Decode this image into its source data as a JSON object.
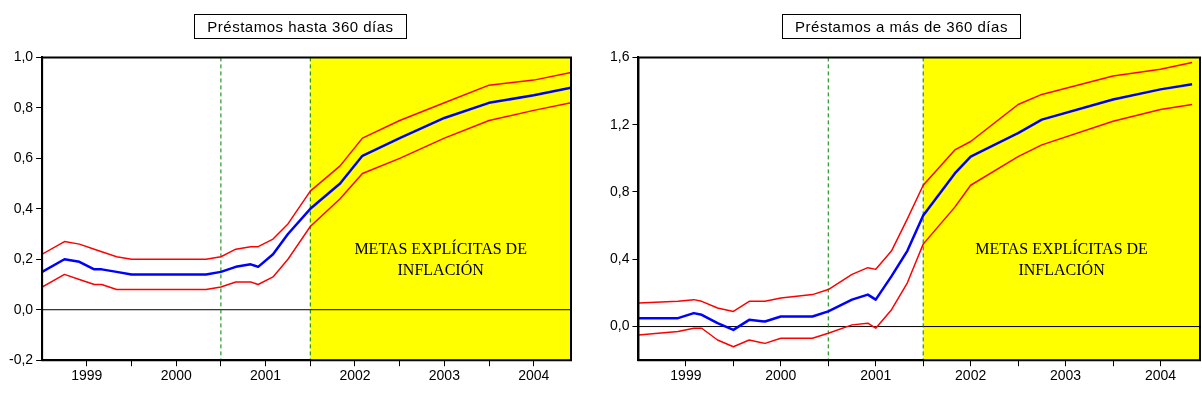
{
  "chart_data": [
    {
      "type": "line",
      "title": "Préstamos hasta 360 días",
      "line_style": "solid",
      "marker": "none",
      "grid": false,
      "legend": false,
      "x": [
        "1999-01",
        "1999-04",
        "1999-06",
        "1999-08",
        "1999-09",
        "1999-11",
        "2000-01",
        "2000-07",
        "2000-11",
        "2001-01",
        "2001-03",
        "2001-05",
        "2001-06",
        "2001-08",
        "2001-10",
        "2002-01",
        "2002-05",
        "2002-08",
        "2003-01",
        "2003-07",
        "2004-01",
        "2004-07",
        "2004-12"
      ],
      "series": [
        {
          "color": "#ff0000",
          "values": [
            0.22,
            0.27,
            0.26,
            0.24,
            0.23,
            0.21,
            0.2,
            0.2,
            0.2,
            0.21,
            0.24,
            0.25,
            0.25,
            0.28,
            0.34,
            0.47,
            0.57,
            0.68,
            0.75,
            0.82,
            0.89,
            0.91,
            0.94
          ]
        },
        {
          "color": "#ff0000",
          "values": [
            0.09,
            0.14,
            0.12,
            0.1,
            0.1,
            0.08,
            0.08,
            0.08,
            0.08,
            0.09,
            0.11,
            0.11,
            0.1,
            0.13,
            0.2,
            0.33,
            0.44,
            0.54,
            0.6,
            0.68,
            0.75,
            0.79,
            0.82
          ]
        },
        {
          "color": "#0000ff",
          "values": [
            0.15,
            0.2,
            0.19,
            0.16,
            0.16,
            0.15,
            0.14,
            0.14,
            0.14,
            0.15,
            0.17,
            0.18,
            0.17,
            0.22,
            0.3,
            0.4,
            0.5,
            0.61,
            0.68,
            0.76,
            0.82,
            0.85,
            0.88
          ]
        }
      ],
      "xlim": [
        "1999-01",
        "2004-12"
      ],
      "xticks": [
        {
          "value": "1999-07",
          "label": "1999"
        },
        {
          "value": "2000-01",
          "label": null
        },
        {
          "value": "2000-07",
          "label": "2000"
        },
        {
          "value": "2001-01",
          "label": null
        },
        {
          "value": "2001-07",
          "label": "2001"
        },
        {
          "value": "2002-01",
          "label": null
        },
        {
          "value": "2002-07",
          "label": "2002"
        },
        {
          "value": "2003-01",
          "label": null
        },
        {
          "value": "2003-07",
          "label": "2003"
        },
        {
          "value": "2004-01",
          "label": null
        },
        {
          "value": "2004-07",
          "label": "2004"
        }
      ],
      "ylim": [
        -0.2,
        1.0
      ],
      "yticks": [
        {
          "value": -0.2,
          "label": "-0,2"
        },
        {
          "value": 0,
          "label": "0,0"
        },
        {
          "value": 0.2,
          "label": "0,2"
        },
        {
          "value": 0.4,
          "label": "0,4"
        },
        {
          "value": 0.6,
          "label": "0,6"
        },
        {
          "value": 0.8,
          "label": "0,8"
        },
        {
          "value": 1.0,
          "label": "1,0"
        }
      ],
      "ref_lines": [
        {
          "axis": "y",
          "value": 0,
          "color": "#000000",
          "line_style": "solid"
        },
        {
          "axis": "x",
          "value": "2001-01",
          "color": "#008000",
          "line_style": "dashed"
        },
        {
          "axis": "x",
          "value": "2002-01",
          "color": "#008000",
          "line_style": "dashed"
        }
      ],
      "bands": [
        {
          "axis": "x",
          "from": "2002-01",
          "to": "2004-12",
          "label": "METAS EXPLÍCITAS DE INFLACIÓN",
          "color": "#ffff00"
        }
      ]
    },
    {
      "type": "line",
      "title": "Préstamos a más de 360 días",
      "line_style": "solid",
      "marker": "none",
      "grid": false,
      "legend": false,
      "x": [
        "1999-01",
        "1999-06",
        "1999-08",
        "1999-09",
        "1999-11",
        "2000-01",
        "2000-03",
        "2000-05",
        "2000-07",
        "2000-11",
        "2001-01",
        "2001-04",
        "2001-06",
        "2001-07",
        "2001-09",
        "2001-11",
        "2002-01",
        "2002-05",
        "2002-07",
        "2003-01",
        "2003-04",
        "2004-01",
        "2004-07",
        "2004-11"
      ],
      "series": [
        {
          "color": "#ff0000",
          "values": [
            0.14,
            0.15,
            0.16,
            0.15,
            0.11,
            0.09,
            0.15,
            0.15,
            0.17,
            0.19,
            0.22,
            0.31,
            0.35,
            0.34,
            0.45,
            0.64,
            0.84,
            1.05,
            1.1,
            1.32,
            1.38,
            1.49,
            1.53,
            1.57
          ]
        },
        {
          "color": "#ff0000",
          "values": [
            -0.05,
            -0.03,
            -0.01,
            -0.01,
            -0.08,
            -0.12,
            -0.08,
            -0.1,
            -0.07,
            -0.07,
            -0.04,
            0.01,
            0.02,
            -0.01,
            0.1,
            0.26,
            0.49,
            0.71,
            0.84,
            1.01,
            1.08,
            1.22,
            1.29,
            1.32
          ]
        },
        {
          "color": "#0000ff",
          "values": [
            0.05,
            0.05,
            0.08,
            0.07,
            0.02,
            -0.02,
            0.04,
            0.03,
            0.06,
            0.06,
            0.09,
            0.16,
            0.19,
            0.16,
            0.3,
            0.45,
            0.66,
            0.91,
            1.01,
            1.15,
            1.23,
            1.35,
            1.41,
            1.44
          ]
        }
      ],
      "xlim": [
        "1999-01",
        "2004-12"
      ],
      "xticks": [
        {
          "value": "1999-07",
          "label": "1999"
        },
        {
          "value": "2000-01",
          "label": null
        },
        {
          "value": "2000-07",
          "label": "2000"
        },
        {
          "value": "2001-01",
          "label": null
        },
        {
          "value": "2001-07",
          "label": "2001"
        },
        {
          "value": "2002-01",
          "label": null
        },
        {
          "value": "2002-07",
          "label": "2002"
        },
        {
          "value": "2003-01",
          "label": null
        },
        {
          "value": "2003-07",
          "label": "2003"
        },
        {
          "value": "2004-01",
          "label": null
        },
        {
          "value": "2004-07",
          "label": "2004"
        }
      ],
      "ylim": [
        -0.2,
        1.6
      ],
      "yticks": [
        {
          "value": 0,
          "label": "0,0"
        },
        {
          "value": 0.4,
          "label": "0,4"
        },
        {
          "value": 0.8,
          "label": "0,8"
        },
        {
          "value": 1.2,
          "label": "1,2"
        },
        {
          "value": 1.6,
          "label": "1,6"
        }
      ],
      "ref_lines": [
        {
          "axis": "y",
          "value": 0,
          "color": "#000000",
          "line_style": "solid"
        },
        {
          "axis": "x",
          "value": "2001-01",
          "color": "#008000",
          "line_style": "dashed"
        },
        {
          "axis": "x",
          "value": "2002-01",
          "color": "#008000",
          "line_style": "dashed"
        }
      ],
      "bands": [
        {
          "axis": "x",
          "from": "2002-01",
          "to": "2004-12",
          "label": "METAS EXPLÍCITAS DE INFLACIÓN",
          "color": "#ffff00"
        }
      ]
    }
  ]
}
